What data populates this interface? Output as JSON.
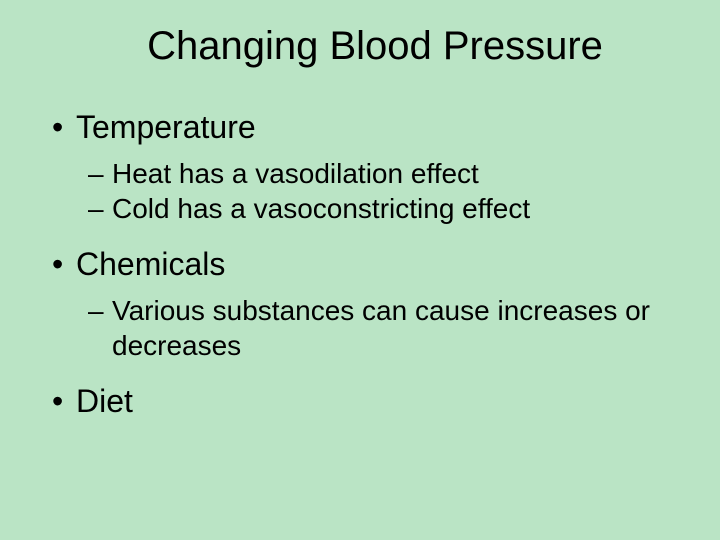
{
  "slide": {
    "title": "Changing Blood Pressure",
    "bullets": [
      {
        "label": "Temperature",
        "subs": [
          "Heat has a vasodilation effect",
          "Cold has a vasoconstricting effect"
        ]
      },
      {
        "label": "Chemicals",
        "subs": [
          "Various substances can cause increases or decreases"
        ]
      },
      {
        "label": "Diet",
        "subs": []
      }
    ]
  },
  "colors": {
    "background": "#bae4c5",
    "text": "#000000"
  },
  "typography": {
    "title_fontsize": 40,
    "bullet_l1_fontsize": 32,
    "bullet_l2_fontsize": 28,
    "font_family": "Arial"
  }
}
